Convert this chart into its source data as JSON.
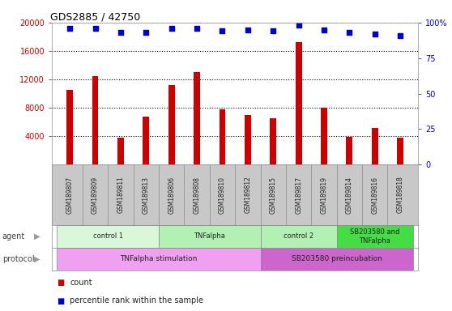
{
  "title": "GDS2885 / 42750",
  "samples": [
    "GSM189807",
    "GSM189809",
    "GSM189811",
    "GSM189813",
    "GSM189806",
    "GSM189808",
    "GSM189810",
    "GSM189812",
    "GSM189815",
    "GSM189817",
    "GSM189819",
    "GSM189814",
    "GSM189816",
    "GSM189818"
  ],
  "counts": [
    10500,
    12500,
    3800,
    6800,
    11200,
    13000,
    7800,
    7000,
    6500,
    17200,
    8000,
    3900,
    5200,
    3800
  ],
  "percentile_ranks": [
    96,
    96,
    93,
    93,
    96,
    96,
    94,
    95,
    94,
    98,
    95,
    93,
    92,
    91
  ],
  "ylim_left": [
    0,
    20000
  ],
  "ylim_right": [
    0,
    100
  ],
  "yticks_left": [
    4000,
    8000,
    12000,
    16000,
    20000
  ],
  "yticks_right": [
    0,
    25,
    50,
    75,
    100
  ],
  "bar_color": "#cc0000",
  "scatter_color": "#0000cc",
  "agent_groups": [
    {
      "label": "control 1",
      "start": 0,
      "end": 4,
      "color": "#d9f7d9"
    },
    {
      "label": "TNFalpha",
      "start": 4,
      "end": 8,
      "color": "#b3f0b3"
    },
    {
      "label": "control 2",
      "start": 8,
      "end": 11,
      "color": "#b3f0b3"
    },
    {
      "label": "SB203580 and\nTNFalpha",
      "start": 11,
      "end": 14,
      "color": "#44dd44"
    }
  ],
  "protocol_groups": [
    {
      "label": "TNFalpha stimulation",
      "start": 0,
      "end": 8,
      "color": "#f0a0f0"
    },
    {
      "label": "SB203580 preincubation",
      "start": 8,
      "end": 14,
      "color": "#cc66cc"
    }
  ],
  "xaxis_bg": "#c8c8c8",
  "legend_count_color": "#cc0000",
  "legend_pct_color": "#0000cc",
  "dotted_line_color": "#000000",
  "background_color": "#ffffff",
  "fig_width": 5.58,
  "fig_height": 3.84,
  "dpi": 100
}
